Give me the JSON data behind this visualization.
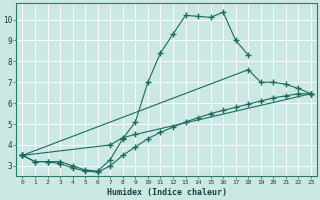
{
  "xlabel": "Humidex (Indice chaleur)",
  "xlim": [
    -0.5,
    23.5
  ],
  "ylim": [
    2.5,
    10.8
  ],
  "xticks": [
    0,
    1,
    2,
    3,
    4,
    5,
    6,
    7,
    8,
    9,
    10,
    11,
    12,
    13,
    14,
    15,
    16,
    17,
    18,
    19,
    20,
    21,
    22,
    23
  ],
  "yticks": [
    3,
    4,
    5,
    6,
    7,
    8,
    9,
    10
  ],
  "bg_color": "#cce8e4",
  "line_color": "#1a6b5e",
  "series": [
    {
      "x": [
        0,
        1,
        2,
        3,
        4,
        5,
        6,
        7,
        8,
        9,
        10,
        11,
        12,
        13,
        14,
        15,
        16,
        17,
        18
      ],
      "y": [
        3.5,
        3.2,
        3.2,
        3.2,
        3.0,
        2.8,
        2.75,
        3.3,
        4.3,
        5.1,
        7.0,
        8.4,
        9.3,
        10.2,
        10.15,
        10.1,
        10.35,
        9.0,
        8.3
      ]
    },
    {
      "x": [
        0,
        18,
        19,
        20,
        21,
        22,
        23
      ],
      "y": [
        3.5,
        7.6,
        7.0,
        7.0,
        6.9,
        6.7,
        6.45
      ]
    },
    {
      "x": [
        0,
        1,
        2,
        3,
        4,
        5,
        6,
        7,
        8,
        9,
        10,
        11,
        12,
        13,
        14,
        15,
        16,
        17,
        18,
        19,
        20,
        21,
        22,
        23
      ],
      "y": [
        3.5,
        3.2,
        3.2,
        3.1,
        2.9,
        2.75,
        2.7,
        3.0,
        3.5,
        3.9,
        4.3,
        4.6,
        4.85,
        5.1,
        5.3,
        5.5,
        5.65,
        5.8,
        5.95,
        6.1,
        6.25,
        6.35,
        6.45,
        6.45
      ]
    },
    {
      "x": [
        0,
        7,
        8,
        9,
        23
      ],
      "y": [
        3.5,
        4.0,
        4.35,
        4.5,
        6.45
      ]
    }
  ]
}
